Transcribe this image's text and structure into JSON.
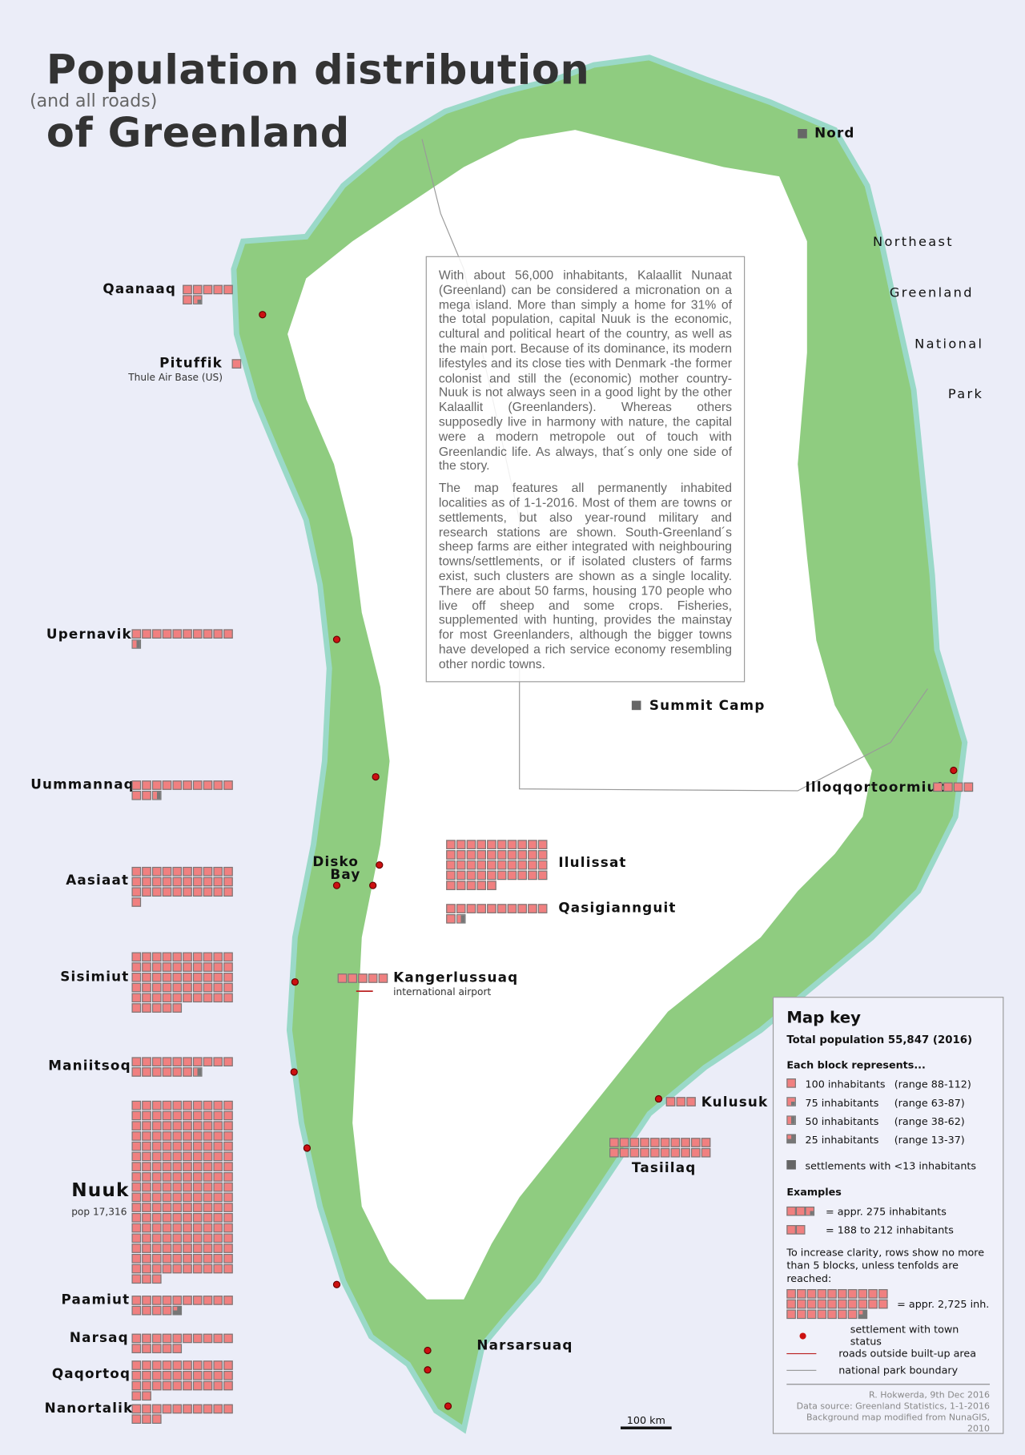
{
  "title": {
    "line1": "Population distribution",
    "aside": "(and all roads)",
    "line2": "of Greenland"
  },
  "colors": {
    "background": "#ebedf8",
    "land": "#8fcc80",
    "coast_water": "#9ad9c8",
    "ice": "#ffffff",
    "block": "#f08080",
    "grey_block": "#666666",
    "town_dot": "#cc1111",
    "tundra": "#7a8a3a"
  },
  "description": {
    "p1": "With about 56,000 inhabitants, Kalaallit Nunaat (Greenland) can be considered a micronation on a mega island. More than simply a home for 31% of the total population, capital Nuuk is the economic, cultural and political heart of the country, as well as the main port. Because of its dominance, its modern lifestyles and its close ties with Denmark -the former colonist and still the (economic) mother country- Nuuk is not always seen in a good light by the other Kalaallit (Greenlanders). Whereas others supposedly live in harmony with nature, the capital were a modern metropole out of touch with Greenlandic life. As always, that´s only one side of the story.",
    "p2": "The map features all permanently inhabited localities as of 1-1-2016. Most of them are towns or settlements, but also year-round military and research stations are shown. South-Greenland´s sheep farms are either integrated with neighbouring towns/settlements, or if isolated clusters of farms exist, such clusters are shown as a single locality. There are about 50 farms, housing 170 people who live off sheep and some crops. Fisheries, supplemented with hunting, provides the mainstay for most Greenlanders, although the bigger towns have developed a rich service economy resembling other nordic towns."
  },
  "towns": [
    {
      "name": "Qaanaaq",
      "blocks": 6,
      "partial": "75"
    },
    {
      "name": "Pituffik",
      "note": "Thule Air Base (US)",
      "blocks": 1
    },
    {
      "name": "Upernavik",
      "blocks": 10,
      "partial": "50"
    },
    {
      "name": "Uummannaq",
      "blocks": 12,
      "partial": "50"
    },
    {
      "name": "Aasiaat",
      "blocks": 31
    },
    {
      "name": "Sisimiut",
      "blocks": 55
    },
    {
      "name": "Maniitsoq",
      "blocks": 16,
      "partial": "50"
    },
    {
      "name": "Nuuk",
      "note": "pop 17,316",
      "blocks": 173
    },
    {
      "name": "Paamiut",
      "blocks": 14,
      "partial": "25"
    },
    {
      "name": "Narsaq",
      "blocks": 15
    },
    {
      "name": "Qaqortoq",
      "blocks": 32
    },
    {
      "name": "Nanortalik",
      "blocks": 13
    },
    {
      "name": "Ilulissat",
      "blocks": 45
    },
    {
      "name": "Qasigiannguit",
      "blocks": 11,
      "partial": "50"
    },
    {
      "name": "Tasiilaq",
      "blocks": 20
    },
    {
      "name": "Illoqqortoormiut",
      "blocks": 4
    },
    {
      "name": "Kulusuk",
      "blocks": 3
    },
    {
      "name": "Kangerlussuaq",
      "note": "international airport",
      "blocks": 5
    }
  ],
  "places": {
    "disko": "Disko",
    "bay": "Bay",
    "nord": "Nord",
    "summit": "Summit Camp",
    "narsarsuaq": "Narsarsuaq"
  },
  "national_park": [
    "Northeast",
    "Greenland",
    "National",
    "Park"
  ],
  "scale_bar": "100 km",
  "key": {
    "title": "Map key",
    "total": "Total population 55,847 (2016)",
    "each_block": "Each block represents...",
    "rows": [
      {
        "value": "100 inhabitants",
        "range": "(range 88-112)"
      },
      {
        "value": "75 inhabitants",
        "range": "(range 63-87)"
      },
      {
        "value": "50 inhabitants",
        "range": "(range 38-62)"
      },
      {
        "value": "25 inhabitants",
        "range": "(range 13-37)"
      }
    ],
    "grey": "settlements with <13 inhabitants",
    "examples": "Examples",
    "ex1": "= appr. 275 inhabitants",
    "ex2": "= 188 to 212 inhabitants",
    "clarity": "To increase clarity, rows show no more than 5 blocks, unless tenfolds are reached:",
    "ex3": "= appr. 2,725 inh.",
    "town_status": "settlement with town status",
    "roads": "roads outside built-up area",
    "park_boundary": "national park boundary",
    "credit1": "R. Hokwerda, 9th Dec 2016",
    "credit2": "Data source: Greenland Statistics, 1-1-2016",
    "credit3": "Background map modified from NunaGIS, 2010"
  }
}
